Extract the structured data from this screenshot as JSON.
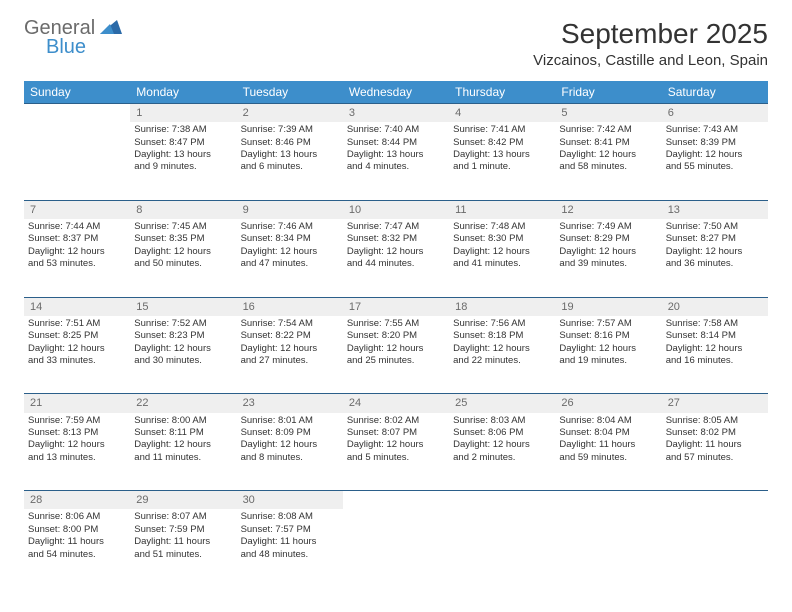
{
  "logo": {
    "general": "General",
    "blue": "Blue"
  },
  "title": "September 2025",
  "location": "Vizcainos, Castille and Leon, Spain",
  "header_bg": "#3d8ecb",
  "header_text": "#ffffff",
  "daynum_bg": "#efefef",
  "rule_color": "#2b5f8a",
  "weekdays": [
    "Sunday",
    "Monday",
    "Tuesday",
    "Wednesday",
    "Thursday",
    "Friday",
    "Saturday"
  ],
  "weeks": [
    [
      null,
      {
        "n": "1",
        "sr": "Sunrise: 7:38 AM",
        "ss": "Sunset: 8:47 PM",
        "d1": "Daylight: 13 hours",
        "d2": "and 9 minutes."
      },
      {
        "n": "2",
        "sr": "Sunrise: 7:39 AM",
        "ss": "Sunset: 8:46 PM",
        "d1": "Daylight: 13 hours",
        "d2": "and 6 minutes."
      },
      {
        "n": "3",
        "sr": "Sunrise: 7:40 AM",
        "ss": "Sunset: 8:44 PM",
        "d1": "Daylight: 13 hours",
        "d2": "and 4 minutes."
      },
      {
        "n": "4",
        "sr": "Sunrise: 7:41 AM",
        "ss": "Sunset: 8:42 PM",
        "d1": "Daylight: 13 hours",
        "d2": "and 1 minute."
      },
      {
        "n": "5",
        "sr": "Sunrise: 7:42 AM",
        "ss": "Sunset: 8:41 PM",
        "d1": "Daylight: 12 hours",
        "d2": "and 58 minutes."
      },
      {
        "n": "6",
        "sr": "Sunrise: 7:43 AM",
        "ss": "Sunset: 8:39 PM",
        "d1": "Daylight: 12 hours",
        "d2": "and 55 minutes."
      }
    ],
    [
      {
        "n": "7",
        "sr": "Sunrise: 7:44 AM",
        "ss": "Sunset: 8:37 PM",
        "d1": "Daylight: 12 hours",
        "d2": "and 53 minutes."
      },
      {
        "n": "8",
        "sr": "Sunrise: 7:45 AM",
        "ss": "Sunset: 8:35 PM",
        "d1": "Daylight: 12 hours",
        "d2": "and 50 minutes."
      },
      {
        "n": "9",
        "sr": "Sunrise: 7:46 AM",
        "ss": "Sunset: 8:34 PM",
        "d1": "Daylight: 12 hours",
        "d2": "and 47 minutes."
      },
      {
        "n": "10",
        "sr": "Sunrise: 7:47 AM",
        "ss": "Sunset: 8:32 PM",
        "d1": "Daylight: 12 hours",
        "d2": "and 44 minutes."
      },
      {
        "n": "11",
        "sr": "Sunrise: 7:48 AM",
        "ss": "Sunset: 8:30 PM",
        "d1": "Daylight: 12 hours",
        "d2": "and 41 minutes."
      },
      {
        "n": "12",
        "sr": "Sunrise: 7:49 AM",
        "ss": "Sunset: 8:29 PM",
        "d1": "Daylight: 12 hours",
        "d2": "and 39 minutes."
      },
      {
        "n": "13",
        "sr": "Sunrise: 7:50 AM",
        "ss": "Sunset: 8:27 PM",
        "d1": "Daylight: 12 hours",
        "d2": "and 36 minutes."
      }
    ],
    [
      {
        "n": "14",
        "sr": "Sunrise: 7:51 AM",
        "ss": "Sunset: 8:25 PM",
        "d1": "Daylight: 12 hours",
        "d2": "and 33 minutes."
      },
      {
        "n": "15",
        "sr": "Sunrise: 7:52 AM",
        "ss": "Sunset: 8:23 PM",
        "d1": "Daylight: 12 hours",
        "d2": "and 30 minutes."
      },
      {
        "n": "16",
        "sr": "Sunrise: 7:54 AM",
        "ss": "Sunset: 8:22 PM",
        "d1": "Daylight: 12 hours",
        "d2": "and 27 minutes."
      },
      {
        "n": "17",
        "sr": "Sunrise: 7:55 AM",
        "ss": "Sunset: 8:20 PM",
        "d1": "Daylight: 12 hours",
        "d2": "and 25 minutes."
      },
      {
        "n": "18",
        "sr": "Sunrise: 7:56 AM",
        "ss": "Sunset: 8:18 PM",
        "d1": "Daylight: 12 hours",
        "d2": "and 22 minutes."
      },
      {
        "n": "19",
        "sr": "Sunrise: 7:57 AM",
        "ss": "Sunset: 8:16 PM",
        "d1": "Daylight: 12 hours",
        "d2": "and 19 minutes."
      },
      {
        "n": "20",
        "sr": "Sunrise: 7:58 AM",
        "ss": "Sunset: 8:14 PM",
        "d1": "Daylight: 12 hours",
        "d2": "and 16 minutes."
      }
    ],
    [
      {
        "n": "21",
        "sr": "Sunrise: 7:59 AM",
        "ss": "Sunset: 8:13 PM",
        "d1": "Daylight: 12 hours",
        "d2": "and 13 minutes."
      },
      {
        "n": "22",
        "sr": "Sunrise: 8:00 AM",
        "ss": "Sunset: 8:11 PM",
        "d1": "Daylight: 12 hours",
        "d2": "and 11 minutes."
      },
      {
        "n": "23",
        "sr": "Sunrise: 8:01 AM",
        "ss": "Sunset: 8:09 PM",
        "d1": "Daylight: 12 hours",
        "d2": "and 8 minutes."
      },
      {
        "n": "24",
        "sr": "Sunrise: 8:02 AM",
        "ss": "Sunset: 8:07 PM",
        "d1": "Daylight: 12 hours",
        "d2": "and 5 minutes."
      },
      {
        "n": "25",
        "sr": "Sunrise: 8:03 AM",
        "ss": "Sunset: 8:06 PM",
        "d1": "Daylight: 12 hours",
        "d2": "and 2 minutes."
      },
      {
        "n": "26",
        "sr": "Sunrise: 8:04 AM",
        "ss": "Sunset: 8:04 PM",
        "d1": "Daylight: 11 hours",
        "d2": "and 59 minutes."
      },
      {
        "n": "27",
        "sr": "Sunrise: 8:05 AM",
        "ss": "Sunset: 8:02 PM",
        "d1": "Daylight: 11 hours",
        "d2": "and 57 minutes."
      }
    ],
    [
      {
        "n": "28",
        "sr": "Sunrise: 8:06 AM",
        "ss": "Sunset: 8:00 PM",
        "d1": "Daylight: 11 hours",
        "d2": "and 54 minutes."
      },
      {
        "n": "29",
        "sr": "Sunrise: 8:07 AM",
        "ss": "Sunset: 7:59 PM",
        "d1": "Daylight: 11 hours",
        "d2": "and 51 minutes."
      },
      {
        "n": "30",
        "sr": "Sunrise: 8:08 AM",
        "ss": "Sunset: 7:57 PM",
        "d1": "Daylight: 11 hours",
        "d2": "and 48 minutes."
      },
      null,
      null,
      null,
      null
    ]
  ]
}
